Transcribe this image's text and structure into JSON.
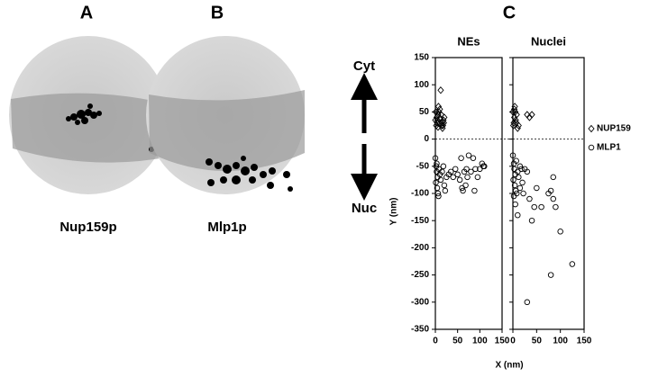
{
  "panels": {
    "a": "A",
    "b": "B",
    "c": "C"
  },
  "captions": {
    "a": "Nup159p",
    "b": "Mlp1p"
  },
  "arrows": {
    "up": "Cyt",
    "down": "Nuc"
  },
  "x_label": "X (nm)",
  "chart_data": [
    {
      "type": "scatter",
      "title": "NEs",
      "ylabel": "Y (nm)",
      "xlim": [
        0,
        150
      ],
      "ylim": [
        -350,
        150
      ],
      "xticks": [
        0,
        50,
        100,
        150
      ],
      "yticks": [
        -350,
        -300,
        -250,
        -200,
        -150,
        -100,
        -50,
        0,
        50,
        100,
        150
      ],
      "reference_line": 0,
      "series": [
        {
          "color": "#000",
          "marker": "diamond",
          "x": [
            2,
            4,
            5,
            3,
            6,
            8,
            10,
            12,
            7,
            15,
            18,
            20,
            14,
            16,
            1,
            9,
            11,
            13,
            17,
            19,
            0,
            6
          ],
          "values": [
            25,
            30,
            35,
            40,
            45,
            50,
            55,
            90,
            60,
            30,
            35,
            40,
            25,
            20,
            50,
            28,
            38,
            45,
            25,
            30,
            35,
            22
          ]
        },
        {
          "color": "#000",
          "marker": "circle",
          "x": [
            0,
            2,
            3,
            5,
            1,
            4,
            6,
            8,
            10,
            12,
            15,
            18,
            20,
            22,
            25,
            30,
            35,
            40,
            45,
            50,
            55,
            60,
            62,
            65,
            70,
            75,
            80,
            85,
            90,
            95,
            100,
            105,
            108,
            110,
            58,
            68,
            72,
            88,
            3,
            7
          ],
          "values": [
            -35,
            -50,
            -60,
            -70,
            -80,
            -90,
            -100,
            -55,
            -65,
            -75,
            -60,
            -50,
            -85,
            -95,
            -70,
            -65,
            -60,
            -70,
            -55,
            -65,
            -75,
            -90,
            -95,
            -60,
            -55,
            -30,
            -60,
            -35,
            -55,
            -70,
            -55,
            -45,
            -50,
            -50,
            -35,
            -85,
            -70,
            -95,
            -45,
            -105
          ]
        }
      ]
    },
    {
      "type": "scatter",
      "title": "Nuclei",
      "xlim": [
        0,
        150
      ],
      "ylim": [
        -350,
        150
      ],
      "xticks": [
        0,
        50,
        100,
        150
      ],
      "yticks": [
        -350,
        -300,
        -250,
        -200,
        -150,
        -100,
        -50,
        0,
        50,
        100,
        150
      ],
      "reference_line": 0,
      "series": [
        {
          "name": "NUP159",
          "color": "#000",
          "marker": "diamond",
          "x": [
            2,
            3,
            5,
            4,
            1,
            6,
            8,
            10,
            0,
            30,
            35,
            40,
            7,
            12,
            3
          ],
          "values": [
            30,
            40,
            50,
            60,
            25,
            35,
            45,
            20,
            50,
            45,
            40,
            45,
            30,
            25,
            55
          ]
        },
        {
          "name": "MLP1",
          "color": "#000",
          "marker": "circle",
          "x": [
            0,
            2,
            3,
            5,
            1,
            4,
            6,
            8,
            10,
            12,
            15,
            18,
            20,
            22,
            25,
            30,
            10,
            35,
            40,
            45,
            50,
            60,
            75,
            80,
            85,
            90,
            100,
            80,
            125,
            30,
            5,
            15,
            7,
            2,
            85
          ],
          "values": [
            -30,
            -45,
            -55,
            -65,
            -75,
            -85,
            -95,
            -100,
            -60,
            -70,
            -50,
            -55,
            -80,
            -100,
            -55,
            -60,
            -140,
            -110,
            -150,
            -125,
            -90,
            -125,
            -100,
            -95,
            -110,
            -125,
            -170,
            -250,
            -230,
            -300,
            -120,
            -90,
            -40,
            -105,
            -70
          ]
        }
      ]
    }
  ]
}
